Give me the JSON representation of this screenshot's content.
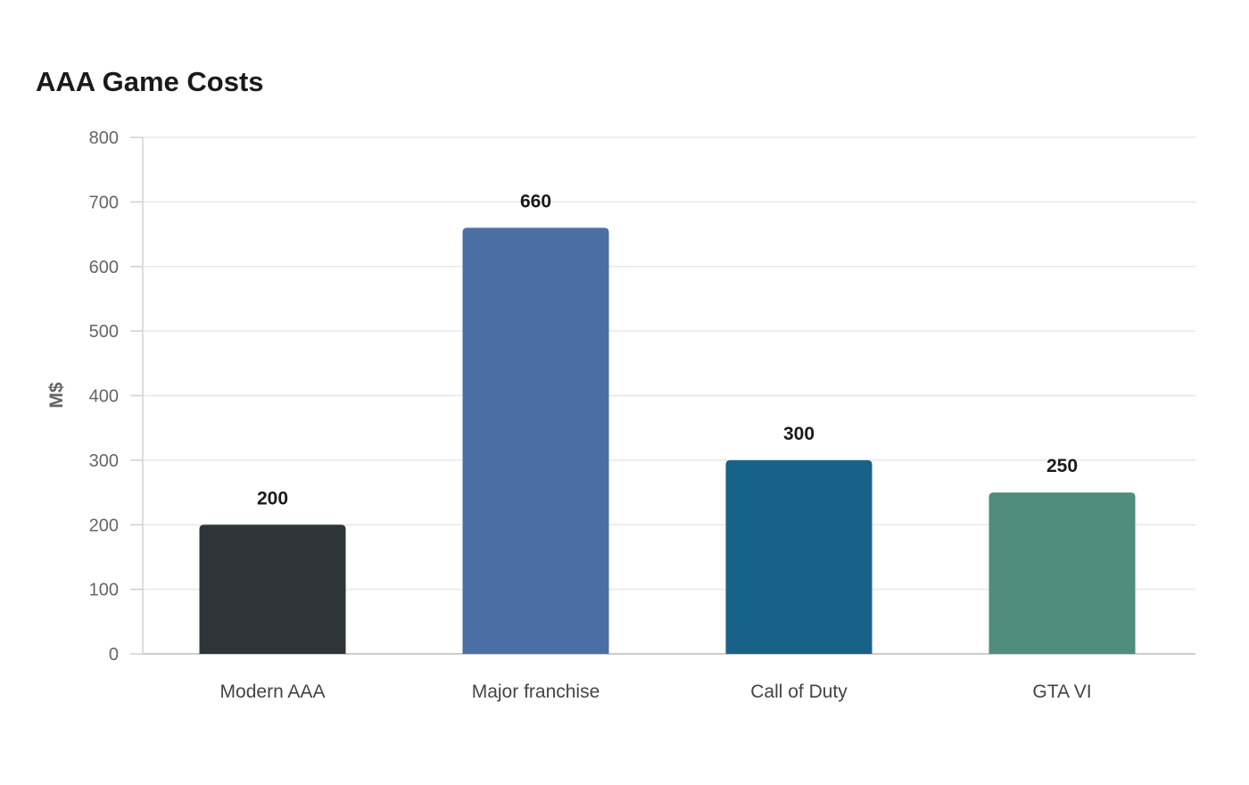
{
  "chart_data": {
    "type": "bar",
    "title": "AAA Game Costs",
    "xlabel": "",
    "ylabel": "M$",
    "categories": [
      "Modern AAA",
      "Major franchise",
      "Call of Duty",
      "GTA VI"
    ],
    "values": [
      200,
      660,
      300,
      250
    ],
    "value_labels": [
      "200",
      "660",
      "300",
      "250"
    ],
    "colors": [
      "#2e3538",
      "#4a6fa5",
      "#186289",
      "#4f8e7b"
    ],
    "ylim": [
      0,
      800
    ],
    "yticks": [
      0,
      100,
      200,
      300,
      400,
      500,
      600,
      700,
      800
    ],
    "ytick_labels": [
      "0",
      "100",
      "200",
      "300",
      "400",
      "500",
      "600",
      "700",
      "800"
    ],
    "grid": true,
    "legend": "none"
  }
}
